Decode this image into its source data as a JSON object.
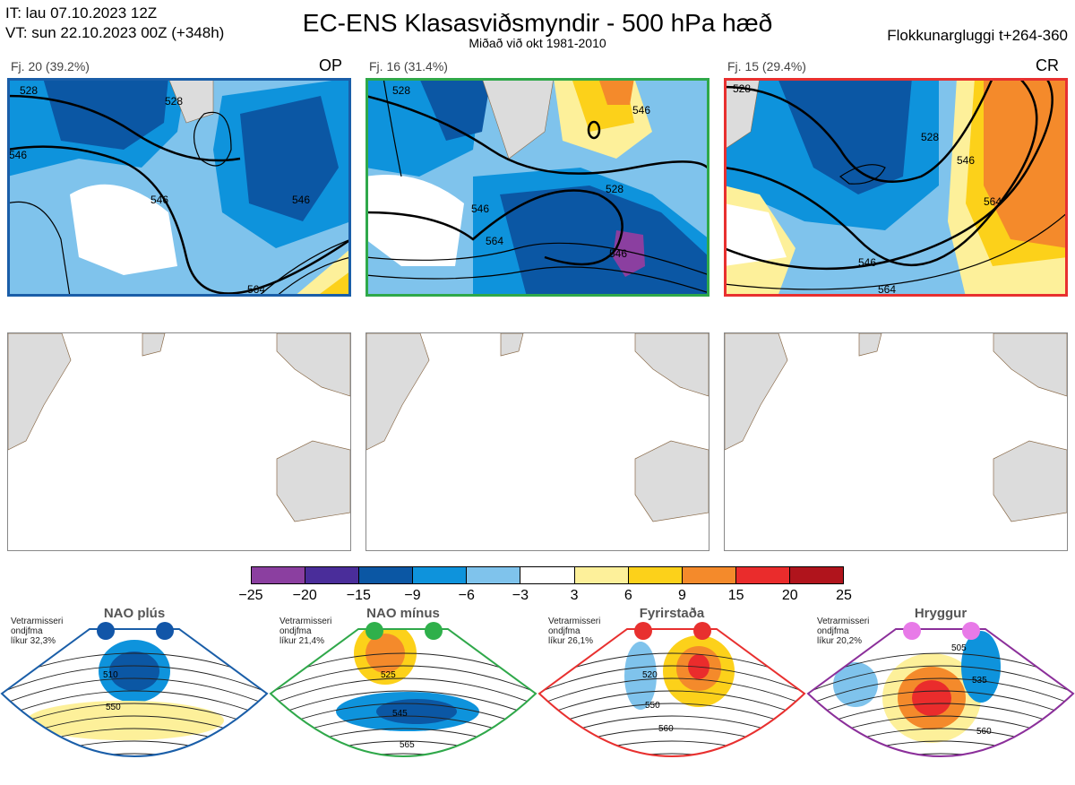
{
  "header": {
    "it_line": "IT: lau 07.10.2023 12Z",
    "vt_line": "VT: sun 22.10.2023 00Z  (+348h)",
    "title": "EC-ENS Klasasviðsmyndir - 500 hPa hæð",
    "subtitle": "Miðað við okt 1981-2010",
    "window": "Flokkunargluggi t+264-360"
  },
  "clusters": [
    {
      "label": "Fj. 20 (39.2%)",
      "tag": "OP",
      "border": "#1a5ea8",
      "contours": [
        "528",
        "546",
        "546",
        "546",
        "528",
        "564"
      ]
    },
    {
      "label": "Fj. 16 (31.4%)",
      "tag": "",
      "border": "#2fa84a",
      "contours": [
        "528",
        "546",
        "528",
        "546",
        "564",
        "546"
      ]
    },
    {
      "label": "Fj. 15 (29.4%)",
      "tag": "CR",
      "border": "#e8302f",
      "contours": [
        "528",
        "528",
        "546",
        "564",
        "546",
        "564"
      ]
    }
  ],
  "colorbar": {
    "ticks": [
      "−25",
      "−20",
      "−15",
      "−9",
      "−6",
      "−3",
      "3",
      "6",
      "9",
      "15",
      "20",
      "25"
    ],
    "colors": [
      "#8b3fa0",
      "#4a2d9a",
      "#0b57a4",
      "#0e93dc",
      "#7fc3ec",
      "#ffffff",
      "#fdf09a",
      "#fcd11a",
      "#f48a2b",
      "#ea2c2c",
      "#b0141c"
    ]
  },
  "regimes": [
    {
      "title": "NAO plús",
      "note": [
        "Vetrarmisseri",
        "ondjfma",
        "líkur 32,3%"
      ],
      "dot_color": "#1256a8",
      "border": "#1a5ea8",
      "contours": [
        "510",
        "550"
      ]
    },
    {
      "title": "NAO mínus",
      "note": [
        "Vetrarmisseri",
        "ondjfma",
        "líkur 21,4%"
      ],
      "dot_color": "#2fb04b",
      "border": "#2fa84a",
      "contours": [
        "525",
        "545",
        "565"
      ]
    },
    {
      "title": "Fyrirstaða",
      "note": [
        "Vetrarmisseri",
        "ondjfma",
        "líkur 26,1%"
      ],
      "dot_color": "#e8302f",
      "border": "#e8302f",
      "contours": [
        "520",
        "550",
        "560"
      ]
    },
    {
      "title": "Hryggur",
      "note": [
        "Vetrarmisseri",
        "ondjfma",
        "líkur 20,2%"
      ],
      "dot_color": "#e87ae8",
      "border": "#8b2f9a",
      "contours": [
        "505",
        "535",
        "560"
      ]
    }
  ],
  "colors": {
    "land": "#dcdcdc",
    "coast": "#8a6b4a",
    "ocean": "#ffffff"
  }
}
